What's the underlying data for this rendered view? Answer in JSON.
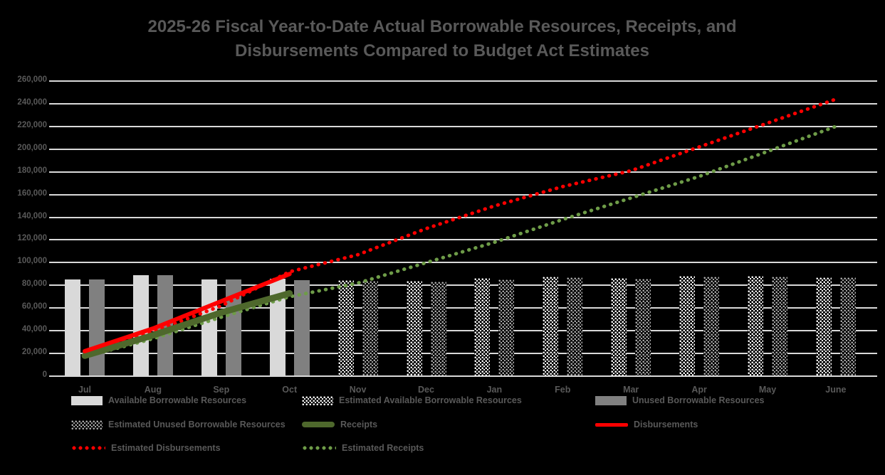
{
  "title": {
    "line1": "2025-26 Fiscal Year-to-Date Actual Borrowable Resources, Receipts, and",
    "line2": "Disbursements Compared to Budget Act Estimates"
  },
  "colors": {
    "background": "#000000",
    "title_text": "#595959",
    "axis_text": "#595959",
    "gridline": "#d9d9d9",
    "bar_light": "#d9d9d9",
    "bar_dark": "#808080",
    "pattern_light": "#ffffff",
    "pattern_dark": "#ababab",
    "receipts": "#4e682c",
    "disbursements": "#ff0000",
    "est_receipts": "#6e9c48",
    "est_disbursements": "#ff0000"
  },
  "chart_data": {
    "type": "bar+line",
    "title": "2025-26 Fiscal Year-to-Date Actual Borrowable Resources, Receipts, and Disbursements Compared to Budget Act Estimates",
    "categories": [
      "Jul",
      "Aug",
      "Sep",
      "Oct",
      "Nov",
      "Dec",
      "Jan",
      "Feb",
      "Mar",
      "Apr",
      "May",
      "June"
    ],
    "ylim": [
      0,
      260000
    ],
    "ytick_step": 20000,
    "grid": true,
    "legend_position": "bottom",
    "bar_series": [
      {
        "name": "Available Borrowable Resources",
        "style": "solid-light",
        "position": "left",
        "values": [
          85500,
          89000,
          85000,
          86000,
          null,
          null,
          null,
          null,
          null,
          null,
          null,
          null
        ]
      },
      {
        "name": "Unused Borrowable Resources",
        "style": "solid-dark",
        "position": "right",
        "values": [
          85500,
          89000,
          85000,
          84500,
          null,
          null,
          null,
          null,
          null,
          null,
          null,
          null
        ]
      },
      {
        "name": "Estimated Available Borrowable Resources",
        "style": "dotted-light",
        "position": "left",
        "values": [
          null,
          null,
          null,
          null,
          84500,
          84000,
          86500,
          88000,
          86500,
          88500,
          88500,
          87000
        ]
      },
      {
        "name": "Estimated Unused Borrowable Resources",
        "style": "dotted-dark",
        "position": "right",
        "values": [
          null,
          null,
          null,
          null,
          84000,
          83500,
          85000,
          87000,
          86000,
          88000,
          88000,
          87000
        ]
      }
    ],
    "line_series": [
      {
        "name": "Estimated Receipts",
        "style": "dotted",
        "color_key": "est_receipts",
        "values": [
          17000,
          33000,
          52000,
          70000,
          82000,
          100000,
          118000,
          138000,
          157000,
          176000,
          198000,
          220000
        ]
      },
      {
        "name": "Estimated Disbursements",
        "style": "dotted",
        "color_key": "est_disbursements",
        "values": [
          21000,
          39000,
          62000,
          92000,
          107000,
          130000,
          150000,
          167000,
          181000,
          202000,
          223000,
          244000
        ]
      },
      {
        "name": "Receipts",
        "style": "solid",
        "color_key": "receipts",
        "values": [
          18000,
          36000,
          56000,
          73000,
          null,
          null,
          null,
          null,
          null,
          null,
          null,
          null
        ]
      },
      {
        "name": "Disbursements",
        "style": "solid",
        "color_key": "disbursements",
        "values": [
          22000,
          42000,
          66000,
          90000,
          null,
          null,
          null,
          null,
          null,
          null,
          null,
          null
        ]
      }
    ]
  },
  "legend": {
    "rows": [
      [
        {
          "label": "Available Borrowable Resources",
          "swatch": "bar-solid-light"
        },
        {
          "label": "Estimated Available Borrowable Resources",
          "swatch": "bar-dotted-light"
        },
        {
          "label": "Unused Borrowable Resources",
          "swatch": "bar-solid-dark"
        }
      ],
      [
        {
          "label": "Estimated Unused Borrowable Resources",
          "swatch": "bar-dotted-dark"
        },
        {
          "label": "Receipts",
          "swatch": "line-solid-green"
        },
        {
          "label": "Disbursements",
          "swatch": "line-solid-red"
        }
      ],
      [
        {
          "label": "Estimated Disbursements",
          "swatch": "line-dotted-red"
        },
        {
          "label": "Estimated Receipts",
          "swatch": "line-dotted-green"
        }
      ]
    ]
  }
}
